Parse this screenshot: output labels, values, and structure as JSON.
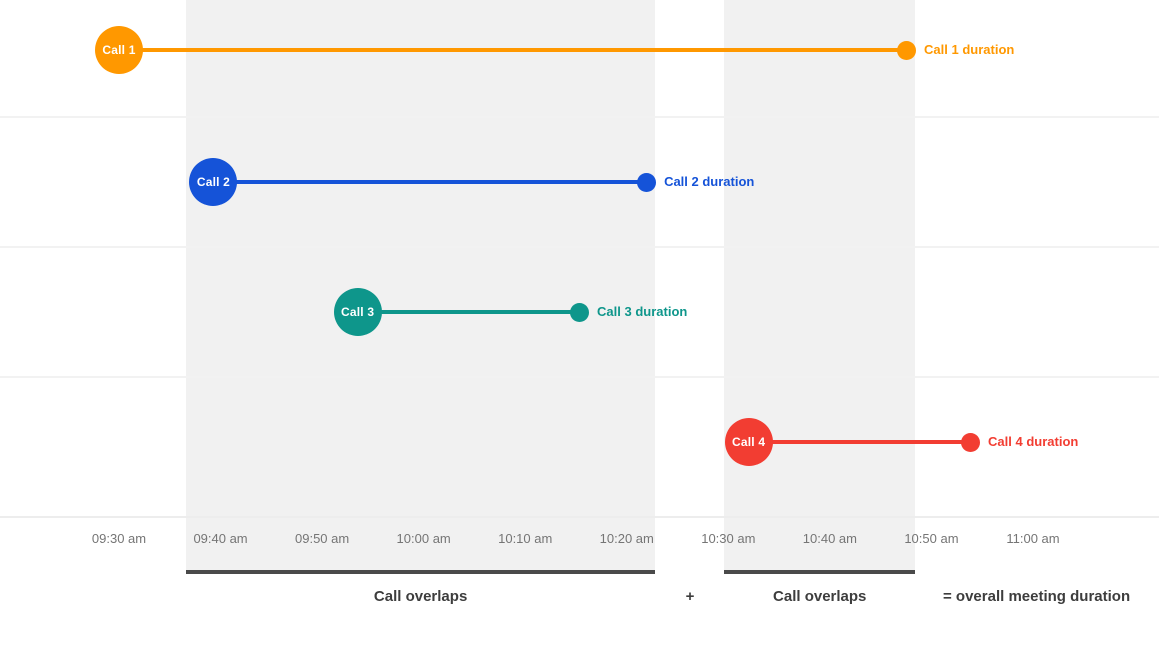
{
  "chart_data": {
    "type": "timeline",
    "title": "",
    "x_axis": {
      "unit": "time of day",
      "start": "09:30 am",
      "end": "11:00 am",
      "tick_labels": [
        "09:30 am",
        "09:40 am",
        "09:50 am",
        "10:00 am",
        "10:10 am",
        "10:20 am",
        "10:30 am",
        "10:40 am",
        "10:50 am",
        "11:00 am"
      ],
      "tick_minutes_from_start": [
        0,
        10,
        20,
        30,
        40,
        50,
        60,
        70,
        80,
        90
      ],
      "grid": "horizontal row separators, light gray",
      "legend": "none"
    },
    "calls": [
      {
        "name": "Call 1",
        "duration_label": "Call 1 duration",
        "color": "#FF9800",
        "start_min": 0,
        "end_min": 77.5,
        "start_time": "09:30 am",
        "end_time": "10:48 am"
      },
      {
        "name": "Call 2",
        "duration_label": "Call 2 duration",
        "color": "#1553D8",
        "start_min": 9.3,
        "end_min": 51.9,
        "start_time": "09:39 am",
        "end_time": "10:22 am"
      },
      {
        "name": "Call 3",
        "duration_label": "Call 3 duration",
        "color": "#0E968B",
        "start_min": 23.5,
        "end_min": 45.3,
        "start_time": "09:54 am",
        "end_time": "10:15 am"
      },
      {
        "name": "Call 4",
        "duration_label": "Call 4 duration",
        "color": "#F23D32",
        "start_min": 62,
        "end_min": 83.8,
        "start_time": "10:32 am",
        "end_time": "10:54 am"
      }
    ],
    "overlap_regions": [
      {
        "label": "Call overlaps",
        "start_min": 6.6,
        "end_min": 52.8
      },
      {
        "label": "Call overlaps",
        "start_min": 59.6,
        "end_min": 78.4
      }
    ],
    "annotations": {
      "plus": "+",
      "equals": "= overall meeting duration"
    },
    "colors": {
      "overlap_block": "#F1F1F1",
      "overlap_bar": "#4A4A4A",
      "gridline": "#F2F2F2",
      "axis_line": "#EDEDED",
      "tick_text": "#757575",
      "annotation_text": "#3D3D3D",
      "background": "#FFFFFF"
    }
  }
}
